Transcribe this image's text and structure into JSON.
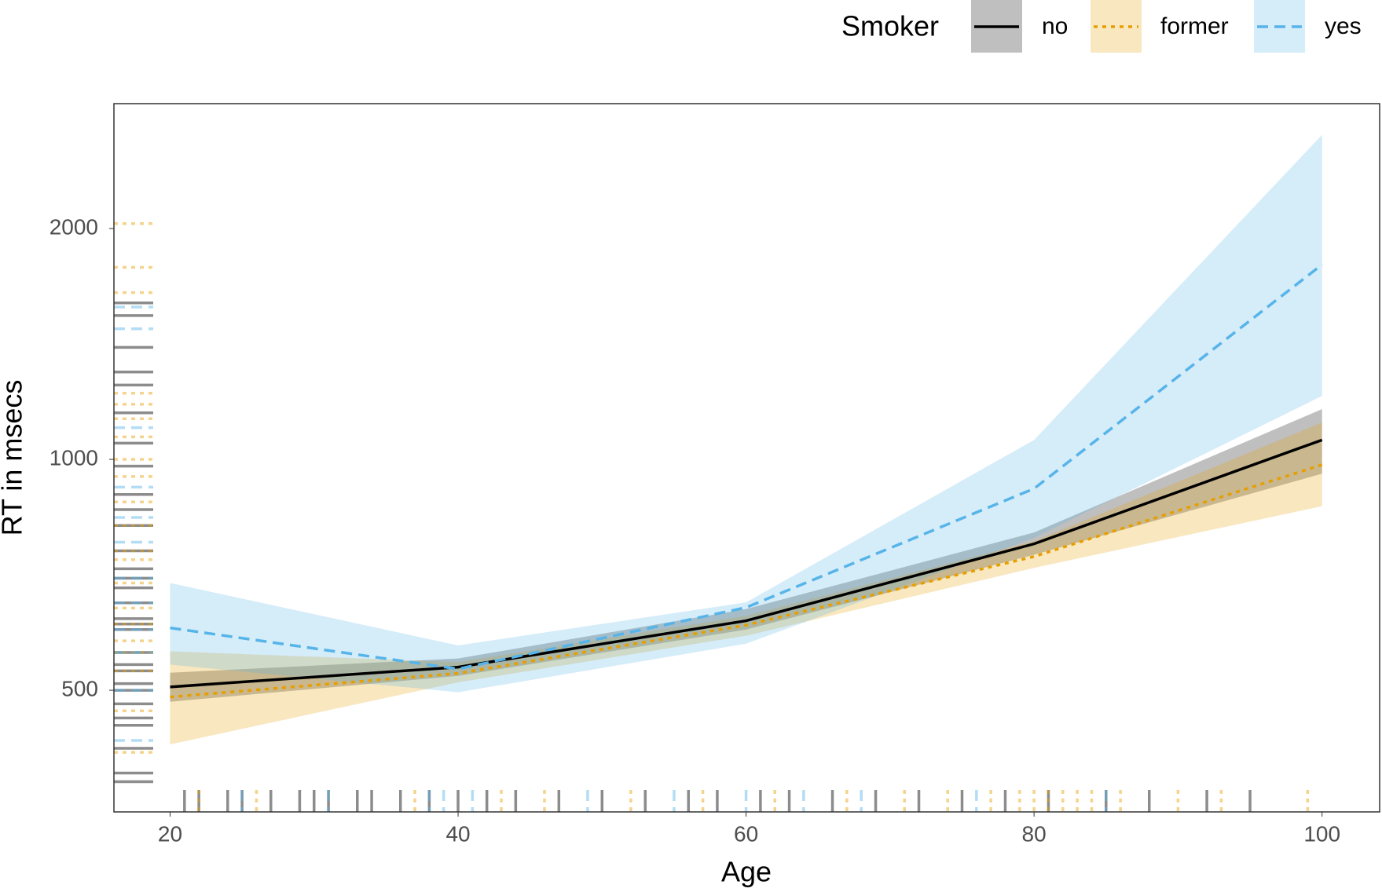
{
  "chart_data": {
    "type": "line",
    "x_label": "Age",
    "y_label": "RT in msecs",
    "legend_title": "Smoker",
    "log_y": true,
    "x": [
      20,
      40,
      60,
      80,
      100
    ],
    "xlim": [
      16.1,
      104.0
    ],
    "xticks": [
      20,
      40,
      60,
      80,
      100
    ],
    "ylim": [
      347,
      2910
    ],
    "yticks": [
      500,
      1000,
      2000
    ],
    "series": [
      {
        "name": "no",
        "color": "#000000",
        "linetype": "solid",
        "values": [
          505,
          536,
          616,
          776,
          1060
        ],
        "lower": [
          483,
          522,
          600,
          751,
          958
        ],
        "upper": [
          527,
          550,
          638,
          803,
          1163
        ],
        "points": {
          "x": [
            21,
            22,
            24,
            25,
            27,
            29,
            30,
            31,
            33,
            34,
            36,
            38,
            40,
            42,
            44,
            47,
            50,
            53,
            56,
            58,
            61,
            63,
            66,
            69,
            72,
            75,
            78,
            81,
            85,
            88,
            92,
            95
          ],
          "y": [
            420,
            510,
            610,
            330,
            700,
            1600,
            460,
            820,
            540,
            380,
            1250,
            650,
            900,
            480,
            720,
            1050,
            560,
            310,
            600,
            1400,
            760,
            450,
            980,
            530,
            680,
            1150,
            390,
            860,
            1300,
            500,
            620,
            1540
          ]
        }
      },
      {
        "name": "former",
        "color": "#E69F00",
        "linetype": "dotted",
        "values": [
          490,
          526,
          608,
          747,
          984
        ],
        "lower": [
          425,
          512,
          589,
          722,
          869
        ],
        "upper": [
          562,
          544,
          625,
          782,
          1117
        ],
        "points": {
          "x": [
            22,
            26,
            37,
            43,
            46,
            52,
            57,
            62,
            67,
            71,
            74,
            77,
            79,
            80,
            81,
            82,
            83,
            84,
            86,
            90,
            93,
            99
          ],
          "y": [
            2030,
            580,
            1130,
            470,
            1780,
            820,
            640,
            1650,
            530,
            950,
            690,
            1220,
            415,
            760,
            1070,
            560,
            880,
            320,
            1000,
            610,
            740,
            1180
          ]
        }
      },
      {
        "name": "yes",
        "color": "#56B4E9",
        "linetype": "dashed",
        "values": [
          603,
          533,
          641,
          916,
          1795
        ],
        "lower": [
          540,
          497,
          575,
          790,
          1210
        ],
        "upper": [
          690,
          572,
          651,
          1060,
          2650
        ],
        "points": {
          "x": [
            25,
            31,
            38,
            39,
            41,
            49,
            55,
            60,
            64,
            68,
            76,
            85
          ],
          "y": [
            1480,
            560,
            780,
            430,
            1580,
            650,
            920,
            500,
            700,
            1100,
            600,
            840
          ]
        }
      }
    ]
  }
}
